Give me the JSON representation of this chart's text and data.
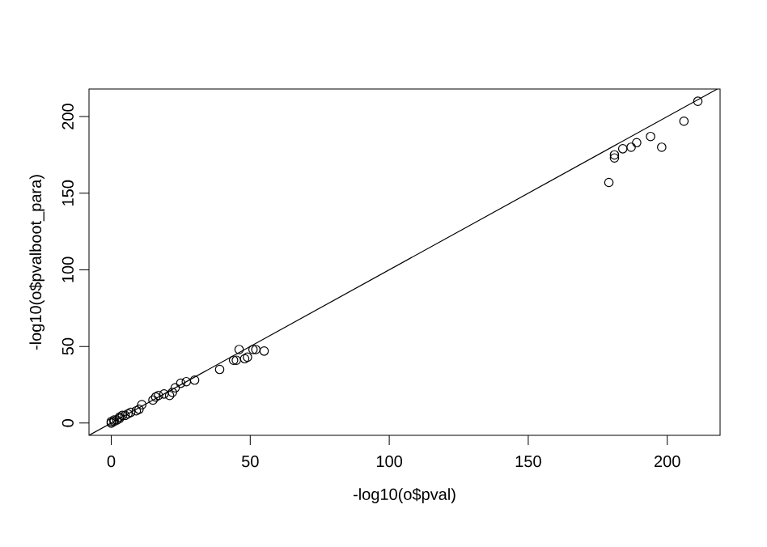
{
  "chart_data": {
    "type": "scatter",
    "xlabel": "-log10(o$pval)",
    "ylabel": "-log10(o$pvalboot_para)",
    "xlim": [
      -8,
      219
    ],
    "ylim": [
      -8,
      218
    ],
    "xticks": [
      0,
      50,
      100,
      150,
      200
    ],
    "yticks": [
      0,
      50,
      100,
      150,
      200
    ],
    "marker": "circle",
    "series": [
      {
        "color": "#000000",
        "x": [
          211,
          206,
          194,
          198,
          189,
          187,
          184,
          181,
          181,
          179,
          55,
          52,
          51,
          46,
          49,
          48,
          45,
          44,
          39,
          30,
          27,
          25,
          23,
          22,
          21,
          19,
          17,
          16,
          15,
          11,
          10,
          9,
          7,
          6,
          5,
          4,
          3,
          3,
          2,
          1,
          1,
          0,
          0
        ],
        "values": [
          210,
          197,
          187,
          180,
          183,
          180,
          179,
          175,
          173,
          157,
          47,
          48,
          48,
          48,
          43,
          42,
          41,
          41,
          35,
          28,
          27,
          26,
          23,
          20,
          18,
          19,
          18,
          17,
          15,
          12,
          9,
          8,
          7,
          6,
          5,
          5,
          4,
          3,
          2,
          2,
          1,
          1,
          0
        ]
      },
      {
        "type": "line",
        "marker": "none",
        "color": "#000000",
        "x": [
          -8,
          218
        ],
        "values": [
          -8,
          218
        ]
      }
    ]
  }
}
